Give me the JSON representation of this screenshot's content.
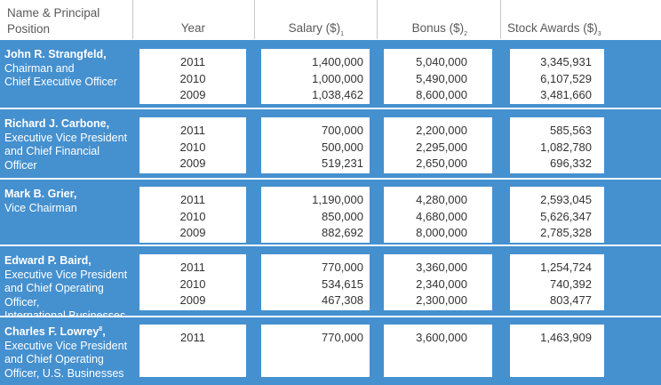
{
  "headers": {
    "name": "Name & Principal Position",
    "year": "Year",
    "salary": "Salary ($)",
    "salary_note": "1",
    "bonus": "Bonus ($)",
    "bonus_note": "2",
    "stock": "Stock Awards ($)",
    "stock_note": "3"
  },
  "colors": {
    "band": "#4590cf",
    "header_text": "#5a5a5a",
    "cell_text": "#333333"
  },
  "executives": [
    {
      "name": "John R. Strangfeld,",
      "title_lines": [
        "Chairman and",
        "Chief Executive Officer"
      ],
      "years": [
        "2011",
        "2010",
        "2009"
      ],
      "salary": [
        "1,400,000",
        "1,000,000",
        "1,038,462"
      ],
      "bonus": [
        "5,040,000",
        "5,490,000",
        "8,600,000"
      ],
      "stock": [
        "3,345,931",
        "6,107,529",
        "3,481,660"
      ]
    },
    {
      "name": "Richard J. Carbone,",
      "title_lines": [
        "Executive Vice President",
        "and Chief Financial Officer"
      ],
      "years": [
        "2011",
        "2010",
        "2009"
      ],
      "salary": [
        "700,000",
        "500,000",
        "519,231"
      ],
      "bonus": [
        "2,200,000",
        "2,295,000",
        "2,650,000"
      ],
      "stock": [
        "585,563",
        "1,082,780",
        "696,332"
      ]
    },
    {
      "name": "Mark B. Grier,",
      "title_lines": [
        "Vice Chairman"
      ],
      "years": [
        "2011",
        "2010",
        "2009"
      ],
      "salary": [
        "1,190,000",
        "850,000",
        "882,692"
      ],
      "bonus": [
        "4,280,000",
        "4,680,000",
        "8,000,000"
      ],
      "stock": [
        "2,593,045",
        "5,626,347",
        "2,785,328"
      ]
    },
    {
      "name": "Edward P. Baird,",
      "title_lines": [
        "Executive Vice President",
        "and Chief Operating Officer,",
        "International Businesses"
      ],
      "years": [
        "2011",
        "2010",
        "2009"
      ],
      "salary": [
        "770,000",
        "534,615",
        "467,308"
      ],
      "bonus": [
        "3,360,000",
        "2,340,000",
        "2,300,000"
      ],
      "stock": [
        "1,254,724",
        "740,392",
        "803,477"
      ]
    },
    {
      "name": "Charles F. Lowrey",
      "name_note": "8",
      "name_suffix": ",",
      "title_lines": [
        "Executive Vice President",
        "and Chief Operating",
        "Officer, U.S. Businesses"
      ],
      "years": [
        "2011"
      ],
      "salary": [
        "770,000"
      ],
      "bonus": [
        "3,600,000"
      ],
      "stock": [
        "1,463,909"
      ]
    }
  ]
}
